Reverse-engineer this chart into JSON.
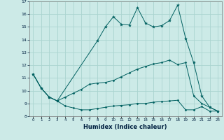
{
  "xlabel": "Humidex (Indice chaleur)",
  "ylabel": "",
  "xlim": [
    -0.5,
    23.5
  ],
  "ylim": [
    8,
    17
  ],
  "yticks": [
    8,
    9,
    10,
    11,
    12,
    13,
    14,
    15,
    16,
    17
  ],
  "xticks": [
    0,
    1,
    2,
    3,
    4,
    5,
    6,
    7,
    8,
    9,
    10,
    11,
    12,
    13,
    14,
    15,
    16,
    17,
    18,
    19,
    20,
    21,
    22,
    23
  ],
  "bg_color": "#cceae7",
  "grid_color": "#aad4d0",
  "line_color": "#006060",
  "line1_x": [
    0,
    1,
    2,
    3,
    4,
    5,
    6,
    7,
    8,
    9,
    10,
    11,
    12,
    13,
    14,
    15,
    16,
    17,
    18,
    19,
    20,
    21,
    22,
    23
  ],
  "line1_y": [
    11.3,
    10.2,
    9.5,
    9.2,
    8.8,
    8.65,
    8.5,
    8.5,
    8.6,
    8.7,
    8.8,
    8.85,
    8.9,
    9.0,
    9.0,
    9.1,
    9.15,
    9.2,
    9.25,
    8.5,
    8.5,
    8.75,
    8.4,
    8.4
  ],
  "line2_x": [
    0,
    1,
    2,
    3,
    4,
    5,
    6,
    7,
    8,
    9,
    10,
    11,
    12,
    13,
    14,
    15,
    16,
    17,
    18,
    19,
    20,
    21,
    22,
    23
  ],
  "line2_y": [
    11.3,
    10.2,
    9.5,
    9.2,
    9.5,
    9.8,
    10.1,
    10.5,
    10.6,
    10.65,
    10.8,
    11.1,
    11.4,
    11.7,
    11.9,
    12.1,
    12.2,
    12.4,
    12.05,
    12.2,
    9.6,
    9.0,
    8.7,
    8.4
  ],
  "line3_x": [
    0,
    1,
    2,
    3,
    8,
    9,
    10,
    11,
    12,
    13,
    14,
    15,
    16,
    17,
    18,
    19,
    20,
    21,
    22,
    23
  ],
  "line3_y": [
    11.3,
    10.2,
    9.5,
    9.2,
    13.9,
    15.0,
    15.8,
    15.2,
    15.15,
    16.5,
    15.3,
    15.0,
    15.1,
    15.5,
    16.7,
    14.1,
    12.2,
    9.6,
    8.7,
    8.4
  ]
}
